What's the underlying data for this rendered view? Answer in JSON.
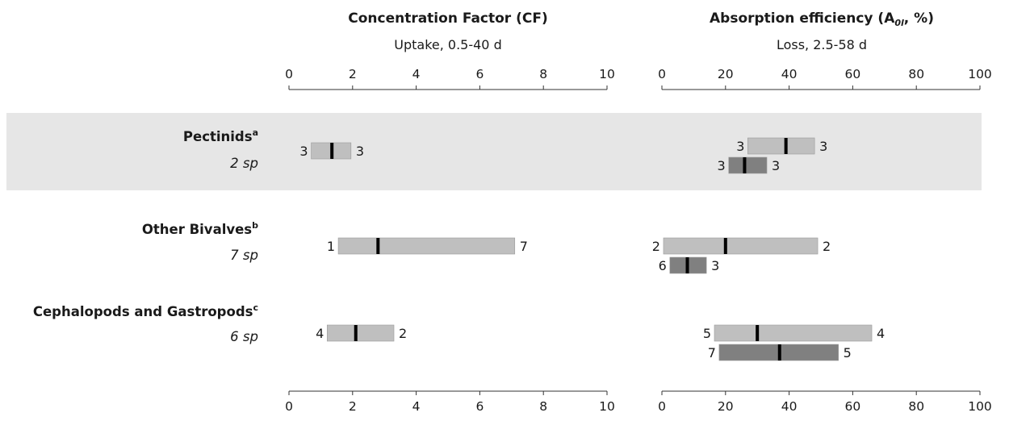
{
  "chart_data": [
    {
      "type": "range-bar",
      "title": "Concentration Factor (CF)",
      "subtitle": "Uptake, 0.5-40 d",
      "xlim": [
        0,
        10
      ],
      "ticks": [
        0,
        2,
        4,
        6,
        8,
        10
      ],
      "tick_labels": [
        "0",
        "2",
        "4",
        "6",
        "8",
        "10"
      ],
      "groups": [
        {
          "label": "Pectinids",
          "sup": "a",
          "n": "2 sp",
          "shaded": true,
          "bars": [
            {
              "shade": "light",
              "min": 0.7,
              "median": 1.35,
              "max": 1.95,
              "left_label": "3",
              "right_label": "3"
            }
          ]
        },
        {
          "label": "Other Bivalves",
          "sup": "b",
          "n": "7 sp",
          "shaded": false,
          "bars": [
            {
              "shade": "light",
              "min": 1.55,
              "median": 2.8,
              "max": 7.1,
              "left_label": "1",
              "right_label": "7"
            }
          ]
        },
        {
          "label": "Cephalopods and Gastropods",
          "sup": "c",
          "n": "6 sp",
          "shaded": false,
          "bars": [
            {
              "shade": "light",
              "min": 1.2,
              "median": 2.1,
              "max": 3.3,
              "left_label": "4",
              "right_label": "2"
            }
          ]
        }
      ]
    },
    {
      "type": "range-bar",
      "title_pre": "Absorption efficiency (A",
      "title_sub": "0l",
      "title_post": ", %)",
      "subtitle": "Loss, 2.5-58 d",
      "xlim": [
        0,
        100
      ],
      "ticks": [
        0,
        20,
        40,
        60,
        80,
        100
      ],
      "tick_labels": [
        "0",
        "20",
        "40",
        "60",
        "80",
        "100"
      ],
      "groups": [
        {
          "label": "Pectinids",
          "shaded": true,
          "bars": [
            {
              "shade": "light",
              "min": 27,
              "median": 39,
              "max": 48,
              "left_label": "3",
              "right_label": "3"
            },
            {
              "shade": "dark",
              "min": 21,
              "median": 26,
              "max": 33,
              "left_label": "3",
              "right_label": "3"
            }
          ]
        },
        {
          "label": "Other Bivalves",
          "shaded": false,
          "bars": [
            {
              "shade": "light",
              "min": 0.5,
              "median": 20,
              "max": 49,
              "left_label": "2",
              "right_label": "2"
            },
            {
              "shade": "dark",
              "min": 2.5,
              "median": 8,
              "max": 14,
              "left_label": "6",
              "right_label": "3"
            }
          ]
        },
        {
          "label": "Cephalopods and Gastropods",
          "shaded": false,
          "bars": [
            {
              "shade": "light",
              "min": 16.5,
              "median": 30,
              "max": 66,
              "left_label": "5",
              "right_label": "4"
            },
            {
              "shade": "dark",
              "min": 18,
              "median": 37,
              "max": 55.5,
              "left_label": "7",
              "right_label": "5"
            }
          ]
        }
      ]
    }
  ],
  "colors": {
    "light_bar": "#bfbfbf",
    "dark_bar": "#808080",
    "median": "#000000",
    "band": "#e6e6e6",
    "axis": "#333333",
    "text": "#1a1a1a"
  }
}
